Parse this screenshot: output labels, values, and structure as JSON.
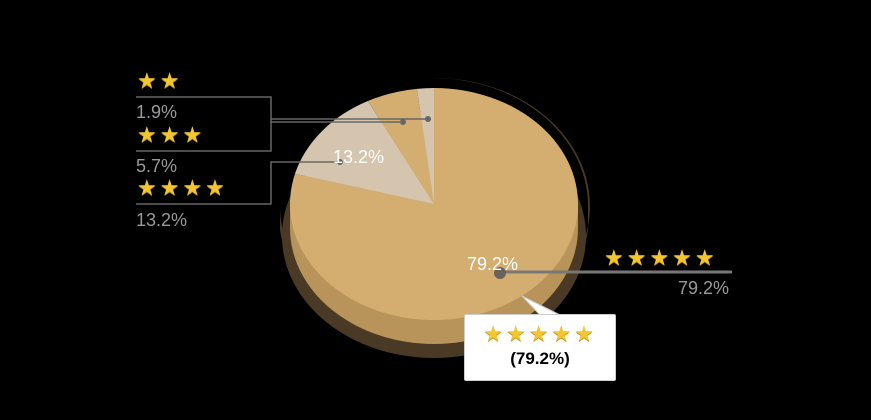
{
  "chart_data": {
    "type": "pie",
    "style": "3d",
    "slices": [
      {
        "label": "★★★★★",
        "stars": 5,
        "value": 79.2,
        "display": "79.2%",
        "color": "#d4ad70"
      },
      {
        "label": "★★★★",
        "stars": 4,
        "value": 13.2,
        "display": "13.2%",
        "color": "#d6c5ae"
      },
      {
        "label": "★★★",
        "stars": 3,
        "value": 5.7,
        "display": "5.7%",
        "color": "#d4ad70"
      },
      {
        "label": "★★",
        "stars": 2,
        "value": 1.9,
        "display": "1.9%",
        "color": "#d6c5ae"
      }
    ],
    "tooltip": {
      "stars": "★★★★★",
      "value": "(79.2%)"
    }
  },
  "colors": {
    "background": "#000000",
    "star": "#f2c531",
    "side": "#b8935a",
    "shadow": "#4a3a25"
  }
}
